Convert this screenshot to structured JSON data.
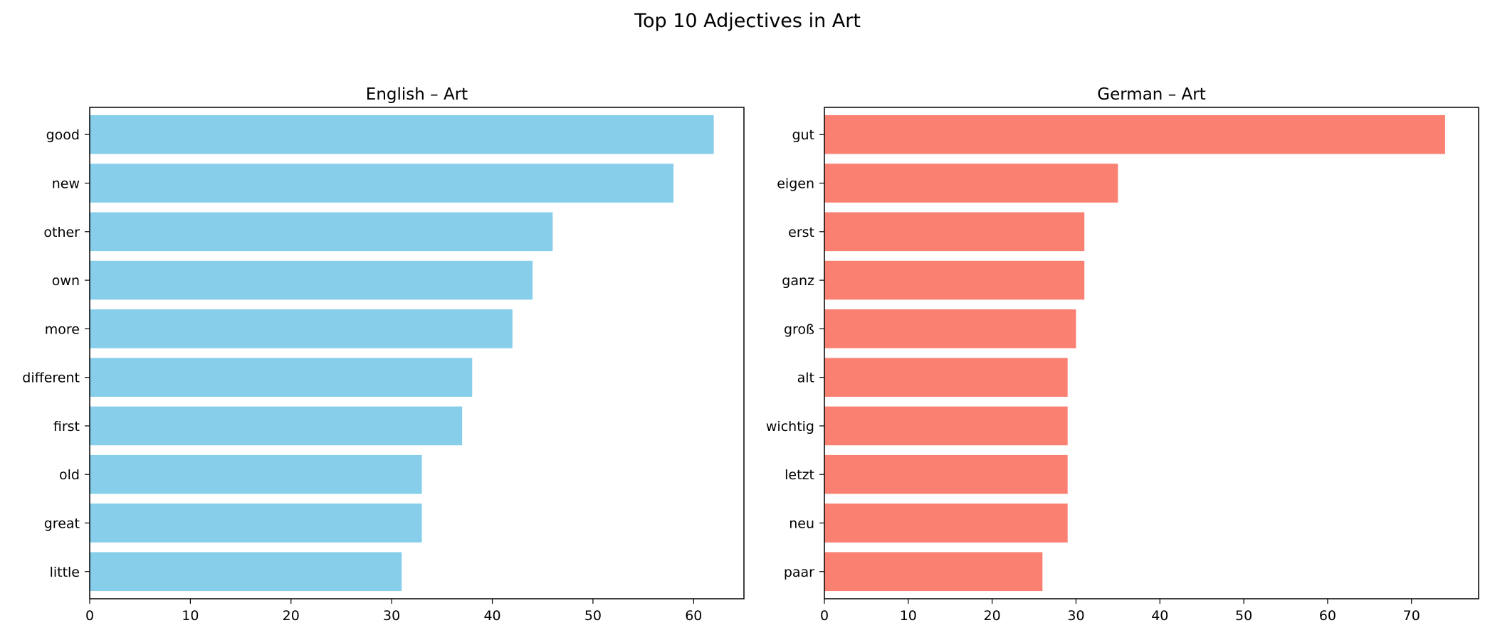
{
  "figure": {
    "title": "Top 10 Adjectives in Art"
  },
  "chart_data": [
    {
      "type": "bar",
      "orientation": "horizontal",
      "title": "English – Art",
      "xlabel": "",
      "ylabel": "",
      "color": "#87CEEB",
      "categories": [
        "good",
        "new",
        "other",
        "own",
        "more",
        "different",
        "first",
        "old",
        "great",
        "little"
      ],
      "values": [
        62,
        58,
        46,
        44,
        42,
        38,
        37,
        33,
        33,
        31
      ],
      "xlim": [
        0,
        65
      ],
      "xticks": [
        0,
        10,
        20,
        30,
        40,
        50,
        60
      ],
      "grid": false,
      "legend": "none"
    },
    {
      "type": "bar",
      "orientation": "horizontal",
      "title": "German – Art",
      "xlabel": "",
      "ylabel": "",
      "color": "#FA8072",
      "categories": [
        "gut",
        "eigen",
        "erst",
        "ganz",
        "groß",
        "alt",
        "wichtig",
        "letzt",
        "neu",
        "paar"
      ],
      "values": [
        74,
        35,
        31,
        31,
        30,
        29,
        29,
        29,
        29,
        26
      ],
      "xlim": [
        0,
        78
      ],
      "xticks": [
        0,
        10,
        20,
        30,
        40,
        50,
        60,
        70
      ],
      "grid": false,
      "legend": "none"
    }
  ]
}
